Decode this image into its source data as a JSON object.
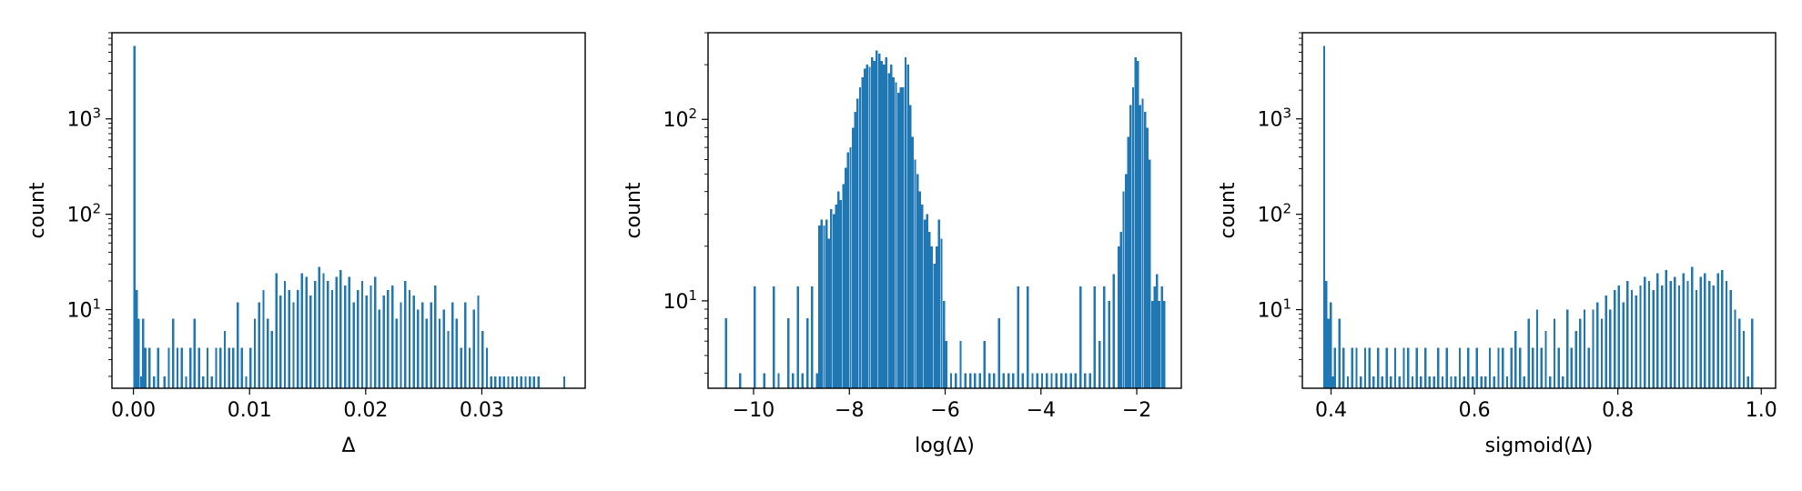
{
  "colors": {
    "bar": "#1f77b4",
    "axis": "#000000",
    "background": "#ffffff"
  },
  "chart_data": [
    {
      "type": "bar",
      "title": "",
      "xlabel": "Δ",
      "ylabel": "count",
      "yscale": "log",
      "xlim": [
        -0.00185,
        0.0389
      ],
      "ylim": [
        1.5,
        8000
      ],
      "xticks": [
        0.0,
        0.01,
        0.02,
        0.03
      ],
      "xtick_labels": [
        "0.00",
        "0.01",
        "0.02",
        "0.03"
      ],
      "yticks": [
        10,
        100,
        1000
      ],
      "ytick_labels": [
        "10¹",
        "10²",
        "10³"
      ],
      "grid": false,
      "legend": "none",
      "bin_width": 0.000185,
      "x": [
        0.0,
        0.00019,
        0.00037,
        0.00056,
        0.00074,
        0.00093,
        0.0013,
        0.00167,
        0.00204,
        0.00259,
        0.00296,
        0.00333,
        0.0037,
        0.00407,
        0.00444,
        0.00481,
        0.00518,
        0.00555,
        0.00592,
        0.00629,
        0.00666,
        0.00703,
        0.0074,
        0.00777,
        0.00814,
        0.00851,
        0.00888,
        0.00925,
        0.00962,
        0.00999,
        0.01036,
        0.01073,
        0.0111,
        0.01147,
        0.01184,
        0.01221,
        0.01258,
        0.01295,
        0.01332,
        0.01369,
        0.01406,
        0.01443,
        0.0148,
        0.01517,
        0.01554,
        0.01591,
        0.01628,
        0.01665,
        0.01702,
        0.01739,
        0.01776,
        0.01813,
        0.0185,
        0.01887,
        0.01924,
        0.01961,
        0.01998,
        0.02035,
        0.02072,
        0.02109,
        0.02146,
        0.02183,
        0.0222,
        0.02257,
        0.02294,
        0.02331,
        0.02368,
        0.02405,
        0.02442,
        0.02479,
        0.02516,
        0.02553,
        0.0259,
        0.02627,
        0.02664,
        0.02701,
        0.02738,
        0.02775,
        0.02812,
        0.02849,
        0.02886,
        0.02923,
        0.0296,
        0.02997,
        0.03034,
        0.03071,
        0.03108,
        0.03145,
        0.03182,
        0.03219,
        0.03256,
        0.03293,
        0.0333,
        0.03367,
        0.03404,
        0.03441,
        0.03478,
        0.037
      ],
      "values": [
        5800,
        16,
        8,
        2,
        8,
        4,
        4,
        2,
        4,
        2,
        4,
        8,
        4,
        4,
        2,
        4,
        8,
        4,
        2,
        4,
        2,
        4,
        4,
        6,
        4,
        4,
        12,
        4,
        2,
        4,
        8,
        12,
        16,
        8,
        6,
        24,
        14,
        20,
        16,
        12,
        16,
        24,
        22,
        14,
        20,
        28,
        24,
        20,
        16,
        22,
        26,
        18,
        22,
        12,
        16,
        20,
        14,
        18,
        22,
        10,
        14,
        16,
        18,
        8,
        12,
        20,
        16,
        14,
        10,
        12,
        8,
        12,
        18,
        8,
        10,
        6,
        12,
        8,
        4,
        12,
        4,
        10,
        14,
        6,
        4,
        2,
        2,
        2,
        2,
        2,
        2,
        2,
        2,
        2,
        2,
        2,
        2,
        2
      ]
    },
    {
      "type": "bar",
      "title": "",
      "xlabel": "log(Δ)",
      "ylabel": "count",
      "yscale": "log",
      "xlim": [
        -10.95,
        -1.07
      ],
      "ylim": [
        3.3,
        300
      ],
      "xticks": [
        -10,
        -8,
        -6,
        -4,
        -2
      ],
      "xtick_labels": [
        "−10",
        "−8",
        "−6",
        "−4",
        "−2"
      ],
      "yticks": [
        10,
        100
      ],
      "ytick_labels": [
        "10¹",
        "10²"
      ],
      "grid": false,
      "legend": "none",
      "bin_width": 0.046,
      "x": [
        -10.6,
        -10.3,
        -10.0,
        -9.8,
        -9.6,
        -9.5,
        -9.3,
        -9.2,
        -9.1,
        -9.0,
        -8.9,
        -8.8,
        -8.7,
        -8.65,
        -8.6,
        -8.55,
        -8.5,
        -8.45,
        -8.4,
        -8.35,
        -8.3,
        -8.25,
        -8.2,
        -8.15,
        -8.1,
        -8.05,
        -8.0,
        -7.95,
        -7.9,
        -7.85,
        -7.8,
        -7.75,
        -7.7,
        -7.65,
        -7.6,
        -7.55,
        -7.5,
        -7.45,
        -7.4,
        -7.35,
        -7.3,
        -7.25,
        -7.2,
        -7.15,
        -7.1,
        -7.05,
        -7.0,
        -6.95,
        -6.9,
        -6.85,
        -6.8,
        -6.75,
        -6.7,
        -6.65,
        -6.6,
        -6.55,
        -6.5,
        -6.45,
        -6.4,
        -6.35,
        -6.3,
        -6.25,
        -6.2,
        -6.15,
        -6.1,
        -6.05,
        -6.0,
        -5.9,
        -5.8,
        -5.7,
        -5.6,
        -5.5,
        -5.4,
        -5.3,
        -5.2,
        -5.1,
        -5.0,
        -4.9,
        -4.8,
        -4.7,
        -4.6,
        -4.5,
        -4.4,
        -4.3,
        -4.2,
        -4.1,
        -4.0,
        -3.9,
        -3.8,
        -3.7,
        -3.6,
        -3.5,
        -3.4,
        -3.3,
        -3.2,
        -3.1,
        -3.0,
        -2.9,
        -2.8,
        -2.7,
        -2.6,
        -2.5,
        -2.4,
        -2.35,
        -2.3,
        -2.25,
        -2.2,
        -2.15,
        -2.1,
        -2.05,
        -2.0,
        -1.95,
        -1.9,
        -1.85,
        -1.8,
        -1.75,
        -1.7,
        -1.65,
        -1.6,
        -1.55,
        -1.5,
        -1.45
      ],
      "values": [
        8,
        4,
        12,
        4,
        12,
        4,
        8,
        4,
        12,
        4,
        8,
        12,
        4,
        26,
        28,
        26,
        28,
        22,
        32,
        30,
        34,
        40,
        36,
        44,
        54,
        66,
        70,
        90,
        110,
        130,
        150,
        170,
        190,
        200,
        195,
        220,
        210,
        240,
        230,
        210,
        200,
        220,
        180,
        200,
        170,
        160,
        140,
        150,
        150,
        220,
        200,
        120,
        80,
        60,
        50,
        40,
        34,
        28,
        30,
        24,
        20,
        16,
        20,
        28,
        22,
        10,
        6,
        4,
        4,
        6,
        4,
        4,
        4,
        4,
        6,
        4,
        4,
        8,
        4,
        4,
        4,
        12,
        4,
        12,
        4,
        4,
        4,
        4,
        4,
        4,
        4,
        4,
        4,
        4,
        12,
        4,
        4,
        12,
        6,
        12,
        10,
        14,
        20,
        24,
        40,
        50,
        80,
        120,
        150,
        220,
        210,
        120,
        130,
        110,
        90,
        60,
        10,
        12,
        14,
        10,
        12,
        10
      ]
    },
    {
      "type": "bar",
      "title": "",
      "xlabel": "sigmoid(Δ)",
      "ylabel": "count",
      "yscale": "log",
      "xlim": [
        0.36,
        1.02
      ],
      "ylim": [
        1.5,
        8000
      ],
      "xticks": [
        0.4,
        0.6,
        0.8,
        1.0
      ],
      "xtick_labels": [
        "0.4",
        "0.6",
        "0.8",
        "1.0"
      ],
      "yticks": [
        10,
        100,
        1000
      ],
      "ytick_labels": [
        "10¹",
        "10²",
        "10³"
      ],
      "grid": false,
      "legend": "none",
      "bin_width": 0.003,
      "x": [
        0.389,
        0.392,
        0.395,
        0.398,
        0.401,
        0.404,
        0.41,
        0.416,
        0.422,
        0.428,
        0.434,
        0.44,
        0.446,
        0.452,
        0.458,
        0.464,
        0.47,
        0.476,
        0.482,
        0.488,
        0.494,
        0.5,
        0.506,
        0.512,
        0.518,
        0.524,
        0.53,
        0.536,
        0.542,
        0.548,
        0.554,
        0.56,
        0.566,
        0.572,
        0.578,
        0.584,
        0.59,
        0.596,
        0.602,
        0.608,
        0.614,
        0.62,
        0.626,
        0.632,
        0.638,
        0.644,
        0.65,
        0.656,
        0.662,
        0.668,
        0.674,
        0.68,
        0.686,
        0.692,
        0.698,
        0.704,
        0.71,
        0.716,
        0.722,
        0.728,
        0.734,
        0.74,
        0.746,
        0.752,
        0.758,
        0.764,
        0.77,
        0.776,
        0.782,
        0.788,
        0.794,
        0.8,
        0.806,
        0.812,
        0.818,
        0.824,
        0.83,
        0.836,
        0.842,
        0.848,
        0.854,
        0.86,
        0.866,
        0.872,
        0.878,
        0.884,
        0.89,
        0.896,
        0.902,
        0.908,
        0.914,
        0.92,
        0.926,
        0.932,
        0.938,
        0.944,
        0.95,
        0.956,
        0.962,
        0.968,
        0.974,
        0.98,
        0.986
      ],
      "values": [
        5800,
        20,
        8,
        12,
        2,
        4,
        8,
        4,
        2,
        4,
        4,
        2,
        4,
        4,
        2,
        4,
        2,
        4,
        2,
        4,
        2,
        4,
        4,
        2,
        4,
        2,
        4,
        2,
        2,
        4,
        2,
        4,
        2,
        2,
        4,
        2,
        4,
        2,
        4,
        2,
        2,
        4,
        2,
        4,
        4,
        2,
        4,
        6,
        4,
        2,
        8,
        4,
        10,
        4,
        6,
        2,
        8,
        4,
        2,
        10,
        4,
        6,
        8,
        10,
        4,
        10,
        12,
        8,
        14,
        10,
        16,
        18,
        12,
        20,
        16,
        14,
        18,
        22,
        20,
        16,
        24,
        18,
        26,
        20,
        22,
        18,
        24,
        20,
        28,
        16,
        22,
        24,
        20,
        18,
        24,
        26,
        20,
        16,
        10,
        8,
        6,
        2,
        8
      ]
    }
  ]
}
